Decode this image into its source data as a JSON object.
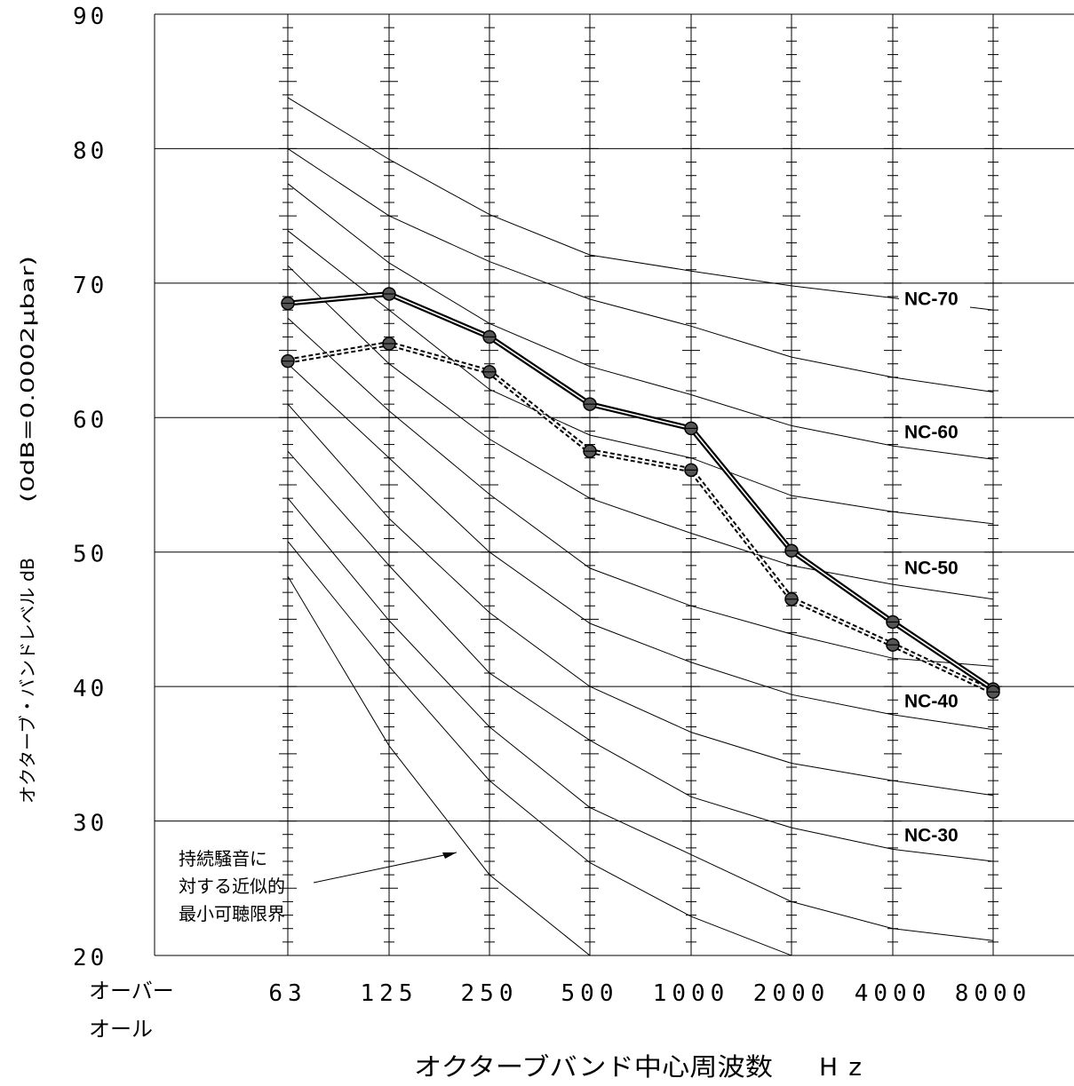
{
  "chart_data": {
    "type": "line",
    "xlabel": "オクターブバンド中心周波数",
    "xunit": "Hz",
    "ylabel": "オクターブ・バンドレベル dB",
    "yref": "(0dB=0.0002μbar)",
    "ylim": [
      20,
      90
    ],
    "yticks": [
      "20",
      "30",
      "40",
      "50",
      "60",
      "70",
      "80",
      "90"
    ],
    "overall_label": [
      "オーバー",
      "オール"
    ],
    "categories": [
      "63",
      "125",
      "250",
      "500",
      "1000",
      "2000",
      "4000",
      "8000"
    ],
    "grid": "horizontal every 10 dB",
    "series": [
      {
        "name": "",
        "style": "solid-double",
        "values": [
          68.5,
          69.2,
          66.0,
          61.0,
          59.2,
          50.1,
          44.8,
          39.8
        ]
      },
      {
        "name": "",
        "style": "dashed",
        "values": [
          64.2,
          65.5,
          63.4,
          57.5,
          56.1,
          46.5,
          43.1,
          39.6
        ]
      }
    ],
    "nc_curves": [
      [
        83.8,
        79.2,
        75.1,
        72.1,
        70.9,
        69.8,
        68.9,
        68.0
      ],
      [
        80.0,
        75.0,
        71.6,
        68.8,
        66.8,
        64.5,
        63.0,
        61.9
      ],
      [
        77.4,
        71.5,
        67.0,
        63.8,
        61.7,
        59.4,
        57.9,
        56.9
      ],
      [
        73.9,
        68.0,
        62.1,
        58.7,
        57.0,
        54.2,
        53.0,
        52.1
      ],
      [
        71.3,
        64.0,
        58.4,
        54.0,
        51.4,
        49.0,
        47.6,
        46.5
      ],
      [
        67.4,
        60.5,
        54.3,
        48.8,
        46.0,
        43.9,
        42.1,
        41.5
      ],
      [
        64.0,
        57.0,
        50.0,
        44.7,
        41.8,
        39.4,
        37.9,
        36.8
      ],
      [
        61.0,
        52.5,
        45.5,
        40.0,
        36.6,
        34.3,
        33.0,
        31.9
      ],
      [
        57.5,
        49.0,
        41.0,
        36.0,
        31.8,
        29.5,
        27.9,
        27.0
      ],
      [
        54.0,
        44.9,
        37.0,
        31.0,
        27.5,
        24.0,
        22.0,
        21.1
      ],
      [
        50.8,
        41.5,
        33.0,
        26.9,
        22.9,
        20.0
      ],
      [
        48.2,
        35.6,
        26.0,
        20.0
      ]
    ],
    "nc_labels": [
      {
        "text": "NC-70",
        "value": 68.9
      },
      {
        "text": "NC-60",
        "value": 59.0
      },
      {
        "text": "NC-50",
        "value": 48.9
      },
      {
        "text": "NC-40",
        "value": 39.0
      },
      {
        "text": "NC-30",
        "value": 29.0
      }
    ],
    "annotation": [
      "持続騒音に",
      "対する近似的",
      "最小可聴限界"
    ]
  }
}
